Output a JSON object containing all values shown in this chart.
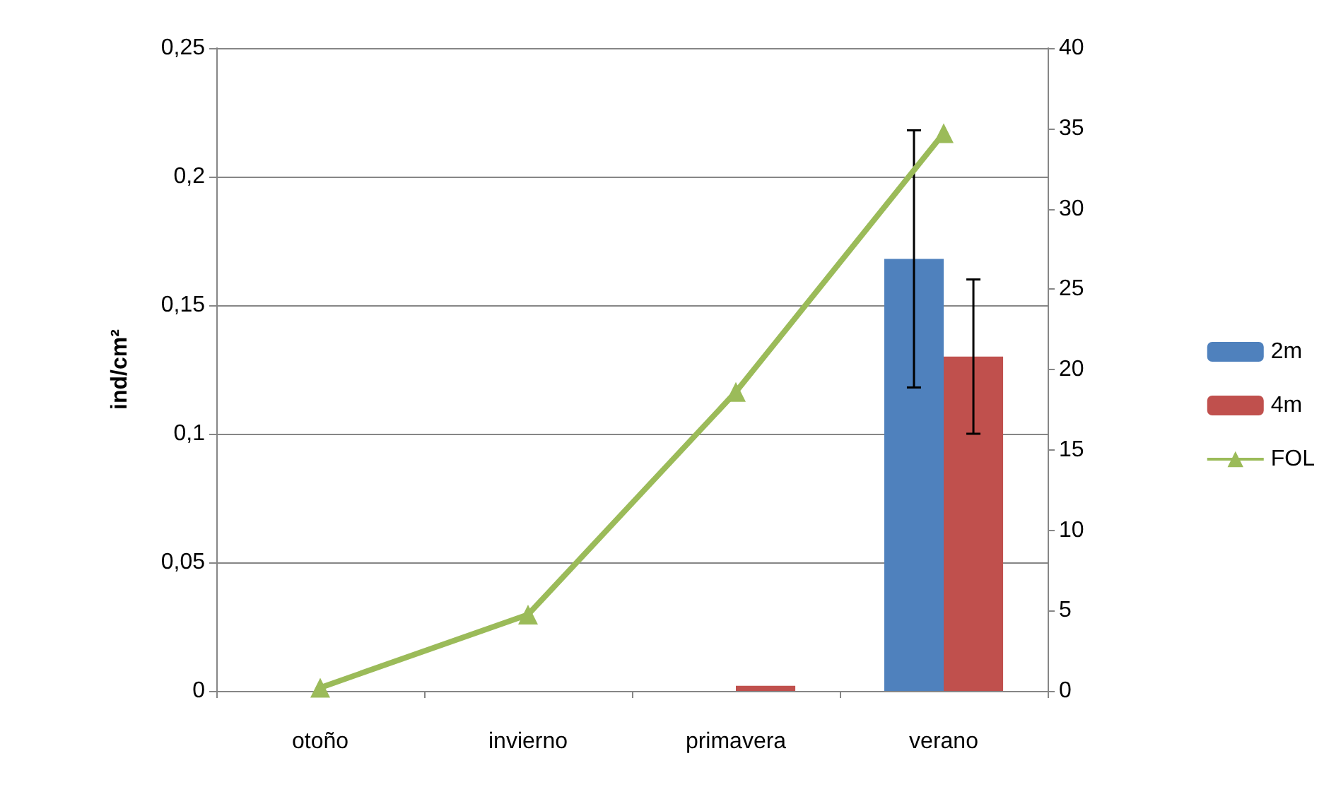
{
  "chart_data": {
    "type": "bar",
    "ylabel": "ind/cm²",
    "categories": [
      "otoño",
      "invierno",
      "primavera",
      "verano"
    ],
    "series": [
      {
        "name": "2m",
        "color": "#4f81bd",
        "values": [
          0,
          0,
          0,
          0.168
        ],
        "errors": [
          null,
          null,
          null,
          0.05
        ]
      },
      {
        "name": "4m",
        "color": "#c0504d",
        "values": [
          0,
          0,
          0.002,
          0.13
        ],
        "errors": [
          null,
          null,
          null,
          0.03
        ]
      },
      {
        "name": "FOL",
        "type": "line",
        "axis": "y2",
        "color": "#9bbb59",
        "marker": "triangle",
        "values": [
          0.2,
          4.75,
          18.6,
          34.7
        ]
      }
    ],
    "ylim": [
      0,
      0.25
    ],
    "yticks": [
      {
        "value": 0,
        "label": "0"
      },
      {
        "value": 0.05,
        "label": "0,05"
      },
      {
        "value": 0.1,
        "label": "0,1"
      },
      {
        "value": 0.15,
        "label": "0,15"
      },
      {
        "value": 0.2,
        "label": "0,2"
      },
      {
        "value": 0.25,
        "label": "0,25"
      }
    ],
    "y2lim": [
      0,
      40
    ],
    "y2ticks": [
      0,
      5,
      10,
      15,
      20,
      25,
      30,
      35,
      40
    ],
    "grid": "y",
    "legend": "right"
  }
}
